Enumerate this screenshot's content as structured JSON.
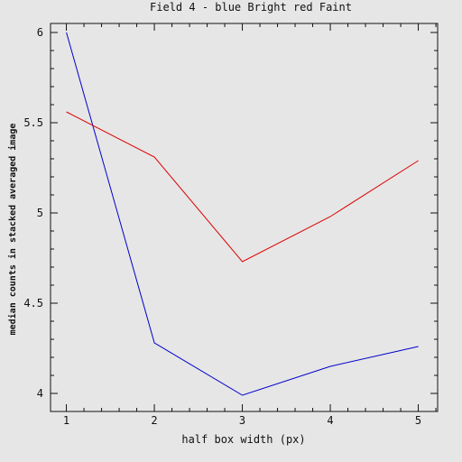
{
  "chart_data": {
    "type": "line",
    "title": "Field 4  -  blue Bright  red Faint",
    "xlabel": "half box width (px)",
    "ylabel": "median counts in stacked averaged image",
    "x": [
      1,
      2,
      3,
      4,
      5
    ],
    "xlim": [
      0.82,
      5.22
    ],
    "ylim": [
      3.9,
      6.05
    ],
    "xticks": [
      1,
      2,
      3,
      4,
      5
    ],
    "yticks": [
      4,
      4.5,
      5,
      5.5,
      6
    ],
    "ytick_labels": [
      "4",
      "4.5",
      "5",
      "5.5",
      "6"
    ],
    "grid": false,
    "series": [
      {
        "color": "#0000cc",
        "values": [
          6.0,
          4.28,
          3.99,
          4.15,
          4.26
        ]
      },
      {
        "color": "#dd0000",
        "values": [
          5.56,
          5.31,
          4.73,
          4.98,
          5.29
        ]
      }
    ]
  }
}
